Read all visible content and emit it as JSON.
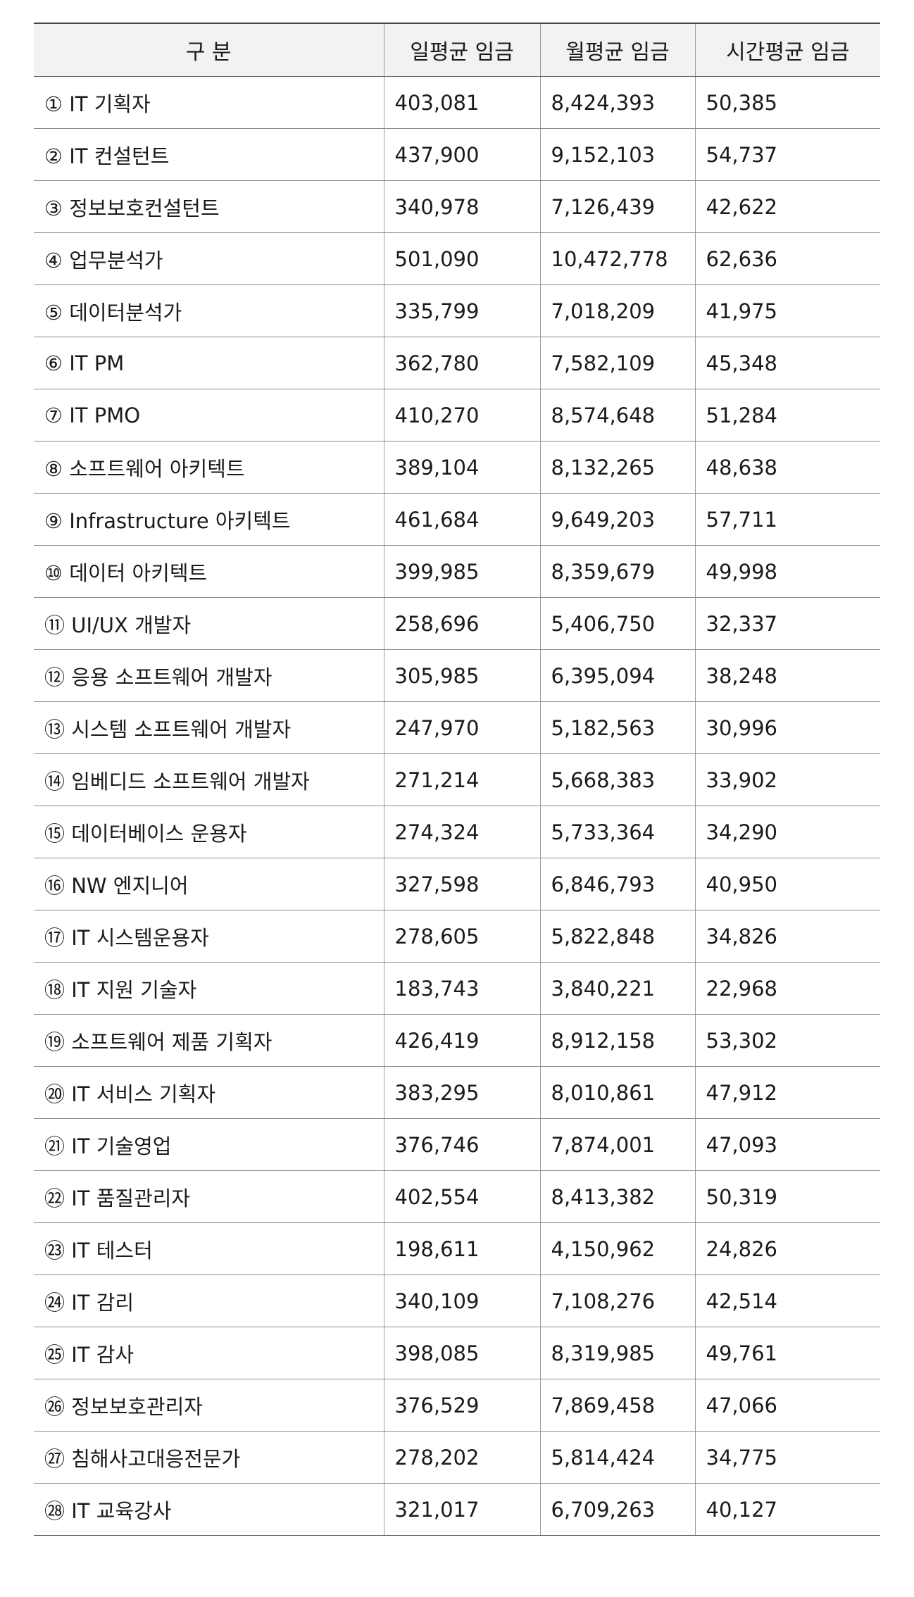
{
  "table": {
    "headers": [
      "구 분",
      "일평균 임금",
      "월평균 임금",
      "시간평균 임금"
    ],
    "rows": [
      [
        "① IT 기획자",
        "403,081",
        "8,424,393",
        "50,385"
      ],
      [
        "② IT 컨설턴트",
        "437,900",
        "9,152,103",
        "54,737"
      ],
      [
        "③ 정보보호컨설턴트",
        "340,978",
        "7,126,439",
        "42,622"
      ],
      [
        "④ 업무분석가",
        "501,090",
        "10,472,778",
        "62,636"
      ],
      [
        "⑤ 데이터분석가",
        "335,799",
        "7,018,209",
        "41,975"
      ],
      [
        "⑥ IT PM",
        "362,780",
        "7,582,109",
        "45,348"
      ],
      [
        "⑦ IT PMO",
        "410,270",
        "8,574,648",
        "51,284"
      ],
      [
        "⑧ 소프트웨어 아키텍트",
        "389,104",
        "8,132,265",
        "48,638"
      ],
      [
        "⑨ Infrastructure 아키텍트",
        "461,684",
        "9,649,203",
        "57,711"
      ],
      [
        "⑩ 데이터 아키텍트",
        "399,985",
        "8,359,679",
        "49,998"
      ],
      [
        "⑪ UI/UX 개발자",
        "258,696",
        "5,406,750",
        "32,337"
      ],
      [
        "⑫ 응용 소프트웨어 개발자",
        "305,985",
        "6,395,094",
        "38,248"
      ],
      [
        "⑬ 시스템 소프트웨어 개발자",
        "247,970",
        "5,182,563",
        "30,996"
      ],
      [
        "⑭ 임베디드 소프트웨어 개발자",
        "271,214",
        "5,668,383",
        "33,902"
      ],
      [
        "⑮ 데이터베이스 운용자",
        "274,324",
        "5,733,364",
        "34,290"
      ],
      [
        "⑯ NW 엔지니어",
        "327,598",
        "6,846,793",
        "40,950"
      ],
      [
        "⑰ IT 시스템운용자",
        "278,605",
        "5,822,848",
        "34,826"
      ],
      [
        "⑱ IT 지원 기술자",
        "183,743",
        "3,840,221",
        "22,968"
      ],
      [
        "⑲ 소프트웨어 제품 기획자",
        "426,419",
        "8,912,158",
        "53,302"
      ],
      [
        "⑳ IT 서비스 기획자",
        "383,295",
        "8,010,861",
        "47,912"
      ],
      [
        "㉑ IT 기술영업",
        "376,746",
        "7,874,001",
        "47,093"
      ],
      [
        "㉒ IT 품질관리자",
        "402,554",
        "8,413,382",
        "50,319"
      ],
      [
        "㉓ IT 테스터",
        "198,611",
        "4,150,962",
        "24,826"
      ],
      [
        "㉔ IT 감리",
        "340,109",
        "7,108,276",
        "42,514"
      ],
      [
        "㉕ IT 감사",
        "398,085",
        "8,319,985",
        "49,761"
      ],
      [
        "㉖ 정보보호관리자",
        "376,529",
        "7,869,458",
        "47,066"
      ],
      [
        "㉗ 침해사고대응전문가",
        "278,202",
        "5,814,424",
        "34,775"
      ],
      [
        "㉘ IT 교육강사",
        "321,017",
        "6,709,263",
        "40,127"
      ]
    ]
  }
}
